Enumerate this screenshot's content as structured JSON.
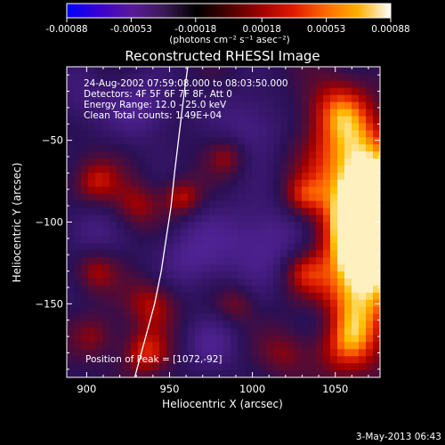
{
  "colorbar": {
    "tick_labels": [
      "-0.00088",
      "-0.00053",
      "-0.00018",
      "0.00018",
      "0.00053",
      "0.00088"
    ],
    "tick_values": [
      -0.00088,
      -0.00053,
      -0.00018,
      0.00018,
      0.00053,
      0.00088
    ],
    "unit_label": "(photons cm⁻² s⁻¹ asec⁻²)",
    "colors": [
      "#0000ff",
      "#3a00d0",
      "#5a1a9a",
      "#3a1a55",
      "#000000",
      "#4a0000",
      "#a00000",
      "#e01a00",
      "#ff6a00",
      "#ffb000",
      "#ffffff"
    ]
  },
  "chart_data": {
    "type": "heatmap",
    "title": "Reconstructed RHESSI Image",
    "xlabel": "Heliocentric X (arcsec)",
    "ylabel": "Heliocentric Y (arcsec)",
    "xlim": [
      888,
      1077
    ],
    "ylim": [
      -195,
      -5
    ],
    "x_ticks": [
      900,
      950,
      1000,
      1050
    ],
    "y_ticks": [
      -50,
      -100,
      -150
    ],
    "x_tick_labels": [
      "900",
      "950",
      "1000",
      "1050"
    ],
    "y_tick_labels": [
      "−50",
      "−100",
      "−150"
    ],
    "info_lines": [
      "24-Aug-2002 07:59:08.000 to 08:03:50.000",
      "Detectors: 4F 5F 6F 7F 8F, Att 0",
      "Energy Range: 12.0 - 25.0 keV",
      "Clean    Total counts: 1.49E+04"
    ],
    "peak_label": "Position of Peak = [1072,-92]",
    "peak": [
      1072,
      -92
    ],
    "limb_curve": [
      [
        929,
        -195
      ],
      [
        933,
        -180
      ],
      [
        937,
        -165
      ],
      [
        941,
        -150
      ],
      [
        945,
        -130
      ],
      [
        948,
        -110
      ],
      [
        951,
        -90
      ],
      [
        953,
        -70
      ],
      [
        956,
        -45
      ],
      [
        959,
        -20
      ],
      [
        961,
        -5
      ]
    ],
    "blobs": [
      {
        "x": 1072,
        "y": -92,
        "v": 1.0,
        "s": 20
      },
      {
        "x": 1068,
        "y": -115,
        "v": 0.85,
        "s": 18
      },
      {
        "x": 1062,
        "y": -60,
        "v": 0.8,
        "s": 20
      },
      {
        "x": 1063,
        "y": -145,
        "v": 0.75,
        "s": 18
      },
      {
        "x": 1058,
        "y": -175,
        "v": 0.6,
        "s": 16
      },
      {
        "x": 1050,
        "y": -30,
        "v": 0.55,
        "s": 14
      },
      {
        "x": 905,
        "y": -75,
        "v": 0.55,
        "s": 10
      },
      {
        "x": 930,
        "y": -90,
        "v": 0.45,
        "s": 10
      },
      {
        "x": 958,
        "y": -85,
        "v": 0.55,
        "s": 8
      },
      {
        "x": 985,
        "y": -60,
        "v": 0.4,
        "s": 8
      },
      {
        "x": 1030,
        "y": -85,
        "v": 0.5,
        "s": 9
      },
      {
        "x": 1030,
        "y": -130,
        "v": 0.45,
        "s": 9
      },
      {
        "x": 905,
        "y": -130,
        "v": 0.45,
        "s": 9
      },
      {
        "x": 940,
        "y": -150,
        "v": 0.55,
        "s": 11
      },
      {
        "x": 935,
        "y": -180,
        "v": 0.6,
        "s": 10
      },
      {
        "x": 905,
        "y": -170,
        "v": 0.35,
        "s": 9
      },
      {
        "x": 990,
        "y": -150,
        "v": 0.35,
        "s": 8
      },
      {
        "x": 1020,
        "y": -180,
        "v": 0.35,
        "s": 10
      },
      {
        "x": 1008,
        "y": -110,
        "v": -0.5,
        "s": 18
      },
      {
        "x": 965,
        "y": -120,
        "v": -0.45,
        "s": 16
      },
      {
        "x": 935,
        "y": -30,
        "v": -0.45,
        "s": 14
      },
      {
        "x": 1000,
        "y": -40,
        "v": -0.4,
        "s": 14
      },
      {
        "x": 900,
        "y": -105,
        "v": -0.35,
        "s": 12
      },
      {
        "x": 975,
        "y": -175,
        "v": -0.35,
        "s": 12
      },
      {
        "x": 1040,
        "y": -160,
        "v": -0.3,
        "s": 10
      },
      {
        "x": 895,
        "y": -25,
        "v": -0.3,
        "s": 12
      }
    ]
  },
  "footer": {
    "timestamp": "3-May-2013 06:43"
  }
}
